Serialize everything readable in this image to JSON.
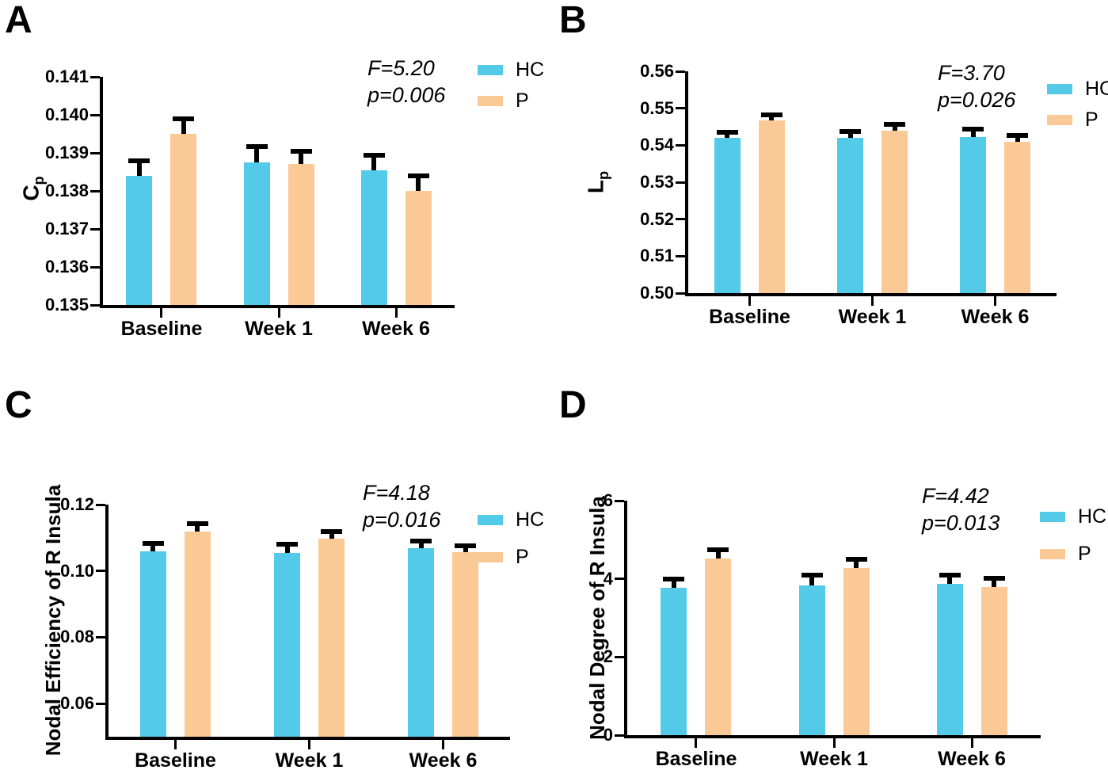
{
  "figure": {
    "panels": [
      "A",
      "B",
      "C",
      "D"
    ]
  },
  "colors": {
    "hc": "#53CAE8",
    "p": "#FBC995",
    "axis": "#000000",
    "background": "#FFFFFF"
  },
  "legend": {
    "items": [
      {
        "key": "hc",
        "label": "HC"
      },
      {
        "key": "p",
        "label": "P"
      }
    ]
  },
  "chart_data": [
    {
      "panel": "A",
      "type": "bar",
      "ylabel": {
        "text": "C",
        "sub": "p"
      },
      "categories": [
        "Baseline",
        "Week 1",
        "Week 6"
      ],
      "series": [
        {
          "name": "HC",
          "color_key": "hc",
          "values": [
            0.1384,
            0.13875,
            0.13855
          ],
          "errors": [
            0.00045,
            0.00047,
            0.00045
          ]
        },
        {
          "name": "P",
          "color_key": "p",
          "values": [
            0.1395,
            0.1387,
            0.138
          ],
          "errors": [
            0.00045,
            0.0004,
            0.00045
          ]
        }
      ],
      "ylim": [
        0.135,
        0.141
      ],
      "yticks": [
        {
          "v": 0.135,
          "label": "0.135"
        },
        {
          "v": 0.136,
          "label": "0.136"
        },
        {
          "v": 0.137,
          "label": "0.137"
        },
        {
          "v": 0.138,
          "label": "0.138"
        },
        {
          "v": 0.139,
          "label": "0.139"
        },
        {
          "v": 0.14,
          "label": "0.140"
        },
        {
          "v": 0.141,
          "label": "0.141"
        }
      ],
      "grid": false,
      "legend_position": "right",
      "stats": {
        "f": "F=5.20",
        "p": "p=0.006"
      }
    },
    {
      "panel": "B",
      "type": "bar",
      "ylabel": {
        "text": "L",
        "sub": "p"
      },
      "categories": [
        "Baseline",
        "Week 1",
        "Week 6"
      ],
      "series": [
        {
          "name": "HC",
          "color_key": "hc",
          "values": [
            0.5421,
            0.5421,
            0.5423
          ],
          "errors": [
            0.002,
            0.0023,
            0.0026
          ]
        },
        {
          "name": "P",
          "color_key": "p",
          "values": [
            0.5468,
            0.544,
            0.541
          ],
          "errors": [
            0.002,
            0.0022,
            0.0023
          ]
        }
      ],
      "ylim": [
        0.5,
        0.56
      ],
      "yticks": [
        {
          "v": 0.5,
          "label": "0.50"
        },
        {
          "v": 0.51,
          "label": "0.51"
        },
        {
          "v": 0.52,
          "label": "0.52"
        },
        {
          "v": 0.53,
          "label": "0.53"
        },
        {
          "v": 0.54,
          "label": "0.54"
        },
        {
          "v": 0.55,
          "label": "0.55"
        },
        {
          "v": 0.56,
          "label": "0.56"
        }
      ],
      "grid": false,
      "legend_position": "right",
      "stats": {
        "f": "F=3.70",
        "p": "p=0.026"
      }
    },
    {
      "panel": "C",
      "type": "bar",
      "ylabel": {
        "text": "Nodal Efficiency of R Insula",
        "sub": ""
      },
      "categories": [
        "Baseline",
        "Week 1",
        "Week 6"
      ],
      "series": [
        {
          "name": "HC",
          "color_key": "hc",
          "values": [
            0.1058,
            0.1054,
            0.1068
          ],
          "errors": [
            0.0032,
            0.0033,
            0.003
          ]
        },
        {
          "name": "P",
          "color_key": "p",
          "values": [
            0.112,
            0.1098,
            0.1056
          ],
          "errors": [
            0.003,
            0.0027,
            0.0026
          ]
        }
      ],
      "ylim": [
        0.05,
        0.12
      ],
      "yticks": [
        {
          "v": 0.06,
          "label": "0.06"
        },
        {
          "v": 0.08,
          "label": "0.08"
        },
        {
          "v": 0.1,
          "label": "0.10"
        },
        {
          "v": 0.12,
          "label": "0.12"
        }
      ],
      "grid": false,
      "legend_position": "right",
      "stats": {
        "f": "F=4.18",
        "p": "p=0.016"
      }
    },
    {
      "panel": "D",
      "type": "bar",
      "ylabel": {
        "text": "Nodal Degree of R Insula",
        "sub": ""
      },
      "categories": [
        "Baseline",
        "Week 1",
        "Week 6"
      ],
      "series": [
        {
          "name": "HC",
          "color_key": "hc",
          "values": [
            3.78,
            3.84,
            3.88
          ],
          "errors": [
            0.28,
            0.32,
            0.28
          ]
        },
        {
          "name": "P",
          "color_key": "p",
          "values": [
            4.52,
            4.28,
            3.8
          ],
          "errors": [
            0.28,
            0.28,
            0.27
          ]
        }
      ],
      "ylim": [
        0,
        6
      ],
      "yticks": [
        {
          "v": 0,
          "label": "0"
        },
        {
          "v": 2,
          "label": "2"
        },
        {
          "v": 4,
          "label": "4"
        },
        {
          "v": 6,
          "label": "6"
        }
      ],
      "grid": false,
      "legend_position": "right",
      "stats": {
        "f": "F=4.42",
        "p": "p=0.013"
      }
    }
  ]
}
